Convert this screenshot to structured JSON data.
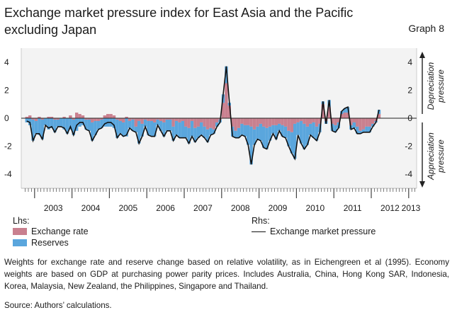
{
  "title": "Exchange market pressure index for East Asia and the Pacific excluding Japan",
  "graph_label": "Graph 8",
  "legend": {
    "lhs_heading": "Lhs:",
    "rhs_heading": "Rhs:",
    "exchange_rate": "Exchange rate",
    "reserves": "Reserves",
    "emp": "Exchange market pressure"
  },
  "notes": "Weights for exchange rate and reserve change based on relative volatility, as in Eichengreen et al (1995). Economy weights are based on GDP at purchasing power parity prices. Includes Australia, China, Hong Kong SAR, Indonesia, Korea, Malaysia, New Zealand, the Philippines, Singapore and Thailand.",
  "source": "Source: Authors’ calculations.",
  "colors": {
    "exchange_rate": "#c9808f",
    "reserves": "#5aa6dd",
    "line": "#111111",
    "axis": "#777777"
  },
  "chart_data": {
    "type": "bar",
    "stacked": true,
    "x_start": "2002-10",
    "frequency": "monthly",
    "xlabels": [
      "2003",
      "2004",
      "2005",
      "2006",
      "2007",
      "2008",
      "2009",
      "2010",
      "2011",
      "2012",
      "2013"
    ],
    "ylim": [
      -5,
      5
    ],
    "yticks_lhs": [
      4,
      2,
      0,
      -2,
      -4
    ],
    "yticks_rhs": [
      4,
      2,
      0,
      -2,
      -4
    ],
    "rhs_annotations": {
      "top": "Depreciation pressure",
      "bottom": "Appreciation pressure"
    },
    "series": [
      {
        "name": "Exchange rate",
        "axis": "lhs",
        "values": [
          0.1,
          0.2,
          -0.1,
          -0.2,
          0.1,
          -0.1,
          0.0,
          0.1,
          0.1,
          -0.1,
          -0.1,
          0.0,
          0.1,
          0.0,
          0.2,
          -0.1,
          0.4,
          0.3,
          0.2,
          -0.1,
          -0.1,
          -0.3,
          -0.2,
          -0.2,
          -0.1,
          0.2,
          0.3,
          0.3,
          0.2,
          -0.1,
          -0.2,
          -0.3,
          0.1,
          -0.2,
          -0.1,
          -0.6,
          -0.2,
          -0.4,
          -0.1,
          -0.2,
          -0.2,
          -0.3,
          -0.1,
          -0.2,
          -0.3,
          -0.1,
          -0.1,
          -0.6,
          -0.2,
          -0.3,
          -0.2,
          -0.6,
          -0.7,
          -0.2,
          -0.7,
          -0.6,
          -0.3,
          -0.6,
          -0.8,
          -0.7,
          -0.8,
          -0.3,
          -0.1,
          1.1,
          2.5,
          0.9,
          -0.6,
          -0.9,
          -0.7,
          -0.4,
          -0.5,
          -0.5,
          -0.6,
          -0.8,
          -0.6,
          -0.4,
          -0.6,
          -0.7,
          -0.6,
          -0.5,
          -0.5,
          -0.4,
          -0.5,
          -0.6,
          -0.9,
          -1.0,
          -0.4,
          -0.3,
          -0.2,
          -0.4,
          -0.6,
          -0.4,
          -0.3,
          -0.6,
          -0.4,
          1.0,
          -0.2,
          0.8,
          -0.4,
          -0.5,
          -0.3,
          0.3,
          0.4,
          0.4,
          -0.5,
          -0.3,
          -0.6,
          -0.9,
          -0.8,
          -0.6,
          -0.6,
          -0.4,
          -0.2,
          0.3
        ]
      },
      {
        "name": "Reserves",
        "axis": "lhs",
        "values": [
          -0.3,
          -0.5,
          -1.5,
          -0.9,
          -1.2,
          -1.4,
          -0.5,
          -0.8,
          -0.7,
          -0.9,
          -0.5,
          -0.6,
          -0.8,
          -1.1,
          -0.8,
          -1.1,
          -0.9,
          -0.6,
          -0.5,
          -0.7,
          -0.8,
          -1.3,
          -1.0,
          -0.6,
          -0.6,
          -0.6,
          -0.6,
          -0.6,
          -0.7,
          -1.3,
          -0.9,
          -1.0,
          -1.3,
          -0.5,
          -0.8,
          -0.4,
          -1.6,
          -0.9,
          -0.5,
          -1.0,
          -1.1,
          -1.0,
          -0.4,
          -0.7,
          -1.0,
          -0.8,
          -0.8,
          -1.0,
          -1.0,
          -1.1,
          -1.2,
          -0.8,
          -1.1,
          -1.1,
          -1.0,
          -0.8,
          -0.9,
          -0.8,
          -0.9,
          -0.5,
          -0.3,
          -0.3,
          -0.2,
          0.6,
          1.2,
          0.2,
          -0.7,
          -0.5,
          -0.7,
          -0.8,
          -0.8,
          -1.4,
          -2.7,
          -1.1,
          -0.9,
          -1.2,
          -1.5,
          -1.5,
          -1.0,
          -0.6,
          -1.0,
          -0.5,
          -0.8,
          -0.8,
          -1.1,
          -1.5,
          -2.5,
          -0.9,
          -1.6,
          -1.8,
          -1.3,
          -0.8,
          -1.1,
          -1.0,
          -0.6,
          0.2,
          -0.2,
          0.5,
          -0.5,
          -0.5,
          -0.4,
          0.2,
          0.3,
          0.4,
          -0.3,
          -0.4,
          -0.5,
          -0.2,
          -0.2,
          -0.4,
          -0.4,
          -0.2,
          -0.1,
          0.3
        ]
      },
      {
        "name": "Exchange market pressure",
        "axis": "rhs",
        "type": "line",
        "values": [
          -0.2,
          -0.3,
          -1.6,
          -1.1,
          -1.1,
          -1.5,
          -0.5,
          -0.7,
          -0.6,
          -1.0,
          -0.6,
          -0.6,
          -0.7,
          -1.1,
          -0.6,
          -1.2,
          -0.5,
          -0.3,
          -0.3,
          -0.8,
          -0.9,
          -1.6,
          -1.2,
          -0.8,
          -0.7,
          -0.4,
          -0.3,
          -0.3,
          -0.5,
          -1.4,
          -1.1,
          -1.3,
          -1.2,
          -0.7,
          -0.9,
          -1.0,
          -1.8,
          -1.3,
          -0.6,
          -1.2,
          -1.3,
          -1.3,
          -0.5,
          -0.9,
          -1.3,
          -0.9,
          -0.9,
          -1.6,
          -1.2,
          -1.4,
          -1.4,
          -1.4,
          -1.8,
          -1.3,
          -1.7,
          -1.4,
          -1.2,
          -1.4,
          -1.7,
          -1.2,
          -1.1,
          -0.6,
          -0.3,
          1.7,
          3.7,
          1.1,
          -1.3,
          -1.4,
          -1.4,
          -1.2,
          -1.3,
          -1.9,
          -3.3,
          -1.9,
          -1.5,
          -1.6,
          -2.1,
          -2.2,
          -1.6,
          -1.1,
          -1.5,
          -0.9,
          -1.3,
          -1.4,
          -2.0,
          -2.5,
          -2.9,
          -1.2,
          -1.8,
          -2.2,
          -1.9,
          -1.2,
          -1.4,
          -1.6,
          -1.0,
          1.2,
          -0.4,
          1.3,
          -0.9,
          -1.0,
          -0.7,
          0.5,
          0.7,
          0.8,
          -0.8,
          -0.7,
          -1.1,
          -1.1,
          -1.0,
          -1.0,
          -1.0,
          -0.6,
          -0.3,
          0.6
        ]
      }
    ]
  }
}
